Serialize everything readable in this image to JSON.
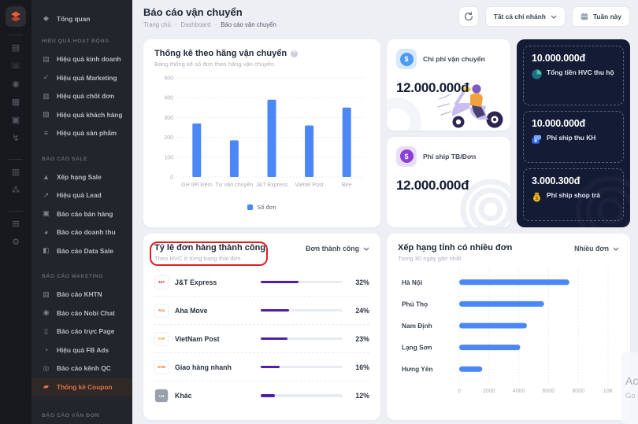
{
  "sidebar": {
    "overview": {
      "label": "Tổng quan",
      "glyph": "◆"
    },
    "sections": [
      {
        "title": "HIỆU QUẢ HOẠT ĐỘNG",
        "items": [
          {
            "label": "Hiệu quả kinh doanh",
            "glyph": "▤",
            "icon": "chart-board-icon"
          },
          {
            "label": "Hiệu quả Marketing",
            "glyph": "✓",
            "icon": "check-line-icon"
          },
          {
            "label": "Hiệu quả chốt đơn",
            "glyph": "▥",
            "icon": "bar-chart-icon"
          },
          {
            "label": "Hiệu quả khách hàng",
            "glyph": "▧",
            "icon": "customer-chart-icon"
          },
          {
            "label": "Hiệu quả sản phẩm",
            "glyph": "≡",
            "icon": "product-list-icon"
          }
        ]
      },
      {
        "title": "BÁO CÁO SALE",
        "items": [
          {
            "label": "Xếp hạng Sale",
            "glyph": "▲",
            "icon": "ranking-icon"
          },
          {
            "label": "Hiệu quả Lead",
            "glyph": "↗",
            "icon": "trend-icon"
          },
          {
            "label": "Báo cáo bán hàng",
            "glyph": "▣",
            "icon": "briefcase-icon"
          },
          {
            "label": "Báo cáo doanh thu",
            "glyph": "◕",
            "icon": "donut-icon"
          },
          {
            "label": "Báo cáo Data Sale",
            "glyph": "◧",
            "icon": "copy-icon"
          }
        ]
      },
      {
        "title": "BÁO CÁO MAKETING",
        "items": [
          {
            "label": "Báo cáo KHTN",
            "glyph": "▤",
            "icon": "document-icon"
          },
          {
            "label": "Báo cáo Nobi Chat",
            "glyph": "◉",
            "icon": "chat-icon"
          },
          {
            "label": "Báo cáo trực Page",
            "glyph": "▯",
            "icon": "page-icon"
          },
          {
            "label": "Hiệu quả FB Ads",
            "glyph": "◔",
            "icon": "pie-icon"
          },
          {
            "label": "Báo cáo kênh QC",
            "glyph": "◎",
            "icon": "target-icon"
          },
          {
            "label": "Thống kê Coupon",
            "glyph": "▰",
            "icon": "ticket-icon",
            "active": true
          }
        ]
      },
      {
        "title": "BÁO CÁO VẬN ĐƠN",
        "items": []
      }
    ]
  },
  "rail": {
    "items": [
      {
        "kind": "icon",
        "name": "presentation-board-icon",
        "glyph": "▤"
      },
      {
        "kind": "icon",
        "name": "phone-call-icon",
        "glyph": "☏"
      },
      {
        "kind": "icon",
        "name": "user-circle-icon",
        "glyph": "◉"
      },
      {
        "kind": "icon",
        "name": "pos-printer-icon",
        "glyph": "▦"
      },
      {
        "kind": "icon",
        "name": "bot-icon",
        "glyph": "▣"
      },
      {
        "kind": "icon",
        "name": "zap-icon",
        "glyph": "↯"
      },
      {
        "kind": "divider"
      },
      {
        "kind": "icon",
        "name": "news-icon",
        "glyph": "▥"
      },
      {
        "kind": "icon",
        "name": "network-icon",
        "glyph": "⁂"
      },
      {
        "kind": "divider"
      },
      {
        "kind": "icon",
        "name": "apps-grid-icon",
        "glyph": "⊞"
      },
      {
        "kind": "icon",
        "name": "gear-icon",
        "glyph": "⚙"
      }
    ]
  },
  "header": {
    "title": "Báo cáo vận chuyển",
    "breadcrumb": [
      "Trang chủ",
      "Dashboard",
      "Báo cáo vận chuyển"
    ],
    "separator": "·",
    "branch_filter": "Tất cả chi nhánh",
    "date_filter": "Tuần này"
  },
  "chart_data": [
    {
      "type": "bar",
      "title": "Thống kê theo hãng vận chuyển",
      "subtitle": "Bảng thống kê số đơn theo hãng vận chuyển.",
      "categories": [
        "GH tiết kiệm",
        "Tự vận chuyển",
        "J&T Express",
        "Viettel Post",
        "Bée"
      ],
      "values": [
        270,
        185,
        390,
        260,
        350
      ],
      "series_name": "Số đơn",
      "legend": "Số đơn",
      "ylim": [
        0,
        500
      ],
      "yticks": [
        0,
        100,
        200,
        300,
        400,
        500
      ],
      "grid": "dotted-horizontal",
      "legend_position": "bottom"
    },
    {
      "type": "hbar",
      "title": "Xếp hạng tỉnh có nhiều đơn",
      "subtitle": "Trong 30 ngày gần nhất",
      "categories": [
        "Hà Nội",
        "Phú Thọ",
        "Nam Định",
        "Lạng Sơn",
        "Hưng Yên"
      ],
      "values": [
        7400,
        5700,
        4550,
        4100,
        1550
      ],
      "xlim": [
        0,
        10000
      ],
      "xticks": [
        0,
        2000,
        4000,
        6000,
        8000,
        10000
      ],
      "xtick_labels": [
        "0",
        "2000",
        "4000",
        "6000",
        "8000",
        "10K"
      ],
      "grid": "dotted-vertical"
    }
  ],
  "cost_cards": [
    {
      "label": "Chi phí vận chuyển",
      "value": "12.000.000đ"
    },
    {
      "label": "Phí ship TB/Đơn",
      "value": "12.000.000đ"
    }
  ],
  "summary_card": {
    "items": [
      {
        "value": "10.000.000đ",
        "label": "Tổng tiền HVC thu hộ",
        "icon": "pie-chart-icon"
      },
      {
        "value": "10.000.000đ",
        "label": "Phí ship thu KH",
        "icon": "wallet-icon"
      },
      {
        "value": "3.000.300đ",
        "label": "Phí ship shop trả",
        "icon": "money-bag-icon"
      }
    ]
  },
  "success_rate_card": {
    "title": "Tỷ lệ đơn hàng thành công",
    "subtitle": "Theo HVC ở từng trạng thái đơn",
    "filter": "Đơn thành công",
    "rows": [
      {
        "name": "J&T Express",
        "percent": 32,
        "logo_text": "J&T",
        "logo_color": "#e0231c",
        "logo_bg": "#ffffff"
      },
      {
        "name": "Aha Move",
        "percent": 24,
        "logo_text": "Aha",
        "logo_color": "#f06f24",
        "logo_bg": "#ffffff"
      },
      {
        "name": "VietNam Post",
        "percent": 23,
        "logo_text": "VNP",
        "logo_color": "#f0a81e",
        "logo_bg": "#ffffff"
      },
      {
        "name": "Giao hàng nhanh",
        "percent": 16,
        "logo_text": "GHN",
        "logo_color": "#f47125",
        "logo_bg": "#ffffff"
      },
      {
        "name": "Khác",
        "percent": 12,
        "logo_text": "+11",
        "logo_color": "#ffffff",
        "logo_bg": "#9aa0ab"
      }
    ]
  },
  "province_card": {
    "filter": "Nhiều đơn"
  },
  "watermark": {
    "line1": "Ac",
    "line2": "Go"
  },
  "colors": {
    "bar_blue": "#4b87f5",
    "progress_purple": "#4e1fa8",
    "active_orange": "#e2714b",
    "dark_navy": "#141b34",
    "annotation_red": "#e02020",
    "grid_line": "#e4e7ee",
    "tick_text": "#a8aeb9",
    "axis_label_text": "#3d4554"
  }
}
